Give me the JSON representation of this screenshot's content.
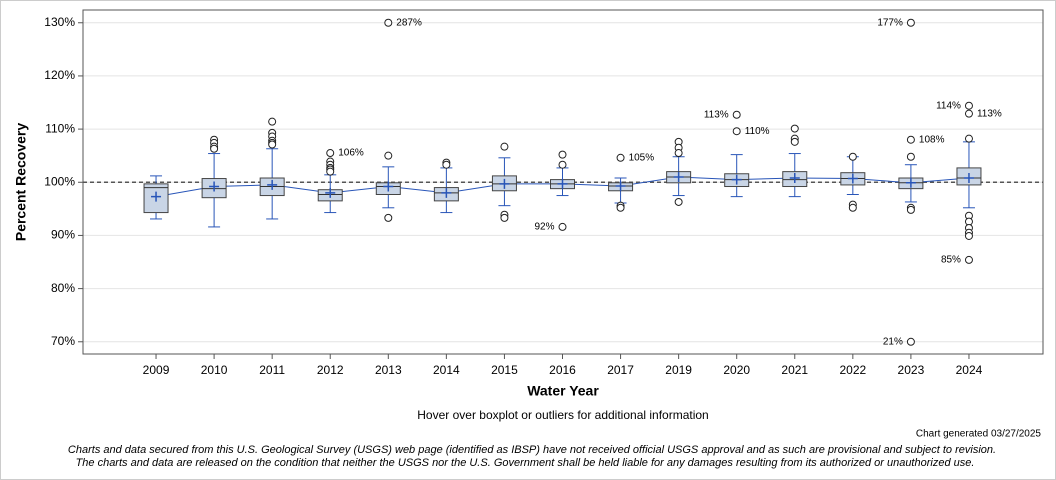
{
  "chart_data": {
    "type": "box",
    "y_axis_label": "Percent Recovery",
    "x_axis_label": "Water Year",
    "note": "Hover over boxplot or outliers for additional information",
    "generated": "Chart generated 03/27/2025",
    "disclaimer": [
      "Charts and data secured from this U.S. Geological Survey (USGS) web page (identified as IBSP) have not received official USGS approval and as such are provisional and subject to revision.",
      "The charts and data are released on the condition that neither the USGS nor the U.S. Government shall be held liable for any damages resulting from its authorized or unauthorized use."
    ],
    "categories": [
      "2009",
      "2010",
      "2011",
      "2012",
      "2013",
      "2014",
      "2015",
      "2016",
      "2017",
      "2019",
      "2020",
      "2021",
      "2022",
      "2023",
      "2024"
    ],
    "box_color": "#c9d5e6",
    "line_color": "#2855b8",
    "reference_line": 100,
    "ylim": [
      67.7,
      132.4
    ],
    "yticks": [
      {
        "value": 70,
        "label": "70%"
      },
      {
        "value": 80,
        "label": "80%"
      },
      {
        "value": 90,
        "label": "90%"
      },
      {
        "value": 100,
        "label": "100%"
      },
      {
        "value": 110,
        "label": "110%"
      },
      {
        "value": 120,
        "label": "120%"
      },
      {
        "value": 130,
        "label": "130%"
      }
    ],
    "grid": true,
    "boxes": [
      {
        "whisker_low": 93.1,
        "q1": 94.3,
        "median": 99.0,
        "q3": 99.7,
        "whisker_high": 101.2,
        "mean": 97.3,
        "outliers": []
      },
      {
        "whisker_low": 91.6,
        "q1": 97.1,
        "median": 98.8,
        "q3": 100.7,
        "whisker_high": 105.4,
        "mean": 99.2,
        "outliers": [
          108.0,
          107.4,
          106.7,
          106.3
        ]
      },
      {
        "whisker_low": 93.1,
        "q1": 97.5,
        "median": 99.2,
        "q3": 100.8,
        "whisker_high": 106.3,
        "mean": 99.5,
        "outliers": [
          111.4,
          109.3,
          108.6,
          107.8,
          107.4,
          107.1
        ]
      },
      {
        "whisker_low": 94.3,
        "q1": 96.5,
        "median": 97.7,
        "q3": 98.6,
        "whisker_high": 101.4,
        "mean": 98.0,
        "outliers": [
          {
            "value": 105.5,
            "label": "106%"
          },
          103.9,
          103.3,
          102.7,
          102.4,
          102.0
        ]
      },
      {
        "whisker_low": 95.2,
        "q1": 97.7,
        "median": 99.2,
        "q3": 99.9,
        "whisker_high": 102.9,
        "mean": 99.2,
        "outliers": [
          {
            "value": 287,
            "label": "287%"
          },
          105.0,
          93.3
        ]
      },
      {
        "whisker_low": 94.3,
        "q1": 96.5,
        "median": 98.0,
        "q3": 99.0,
        "whisker_high": 102.7,
        "mean": 98.0,
        "outliers": [
          103.7,
          103.3
        ]
      },
      {
        "whisker_low": 95.6,
        "q1": 98.4,
        "median": 99.7,
        "q3": 101.2,
        "whisker_high": 104.6,
        "mean": 99.7,
        "outliers": [
          106.7,
          93.9,
          93.3
        ]
      },
      {
        "whisker_low": 97.5,
        "q1": 98.8,
        "median": 99.7,
        "q3": 100.5,
        "whisker_high": 102.7,
        "mean": 99.7,
        "outliers": [
          105.2,
          103.3,
          {
            "value": 91.6,
            "label": "92%"
          }
        ]
      },
      {
        "whisker_low": 96.1,
        "q1": 98.4,
        "median": 99.3,
        "q3": 99.9,
        "whisker_high": 100.8,
        "mean": 99.3,
        "outliers": [
          {
            "value": 104.6,
            "label": "105%"
          },
          95.6,
          95.2
        ]
      },
      {
        "whisker_low": 97.5,
        "q1": 99.9,
        "median": 101.0,
        "q3": 102.0,
        "whisker_high": 104.8,
        "mean": 101.0,
        "outliers": [
          107.6,
          106.5,
          105.5,
          96.3
        ]
      },
      {
        "whisker_low": 97.3,
        "q1": 99.2,
        "median": 100.5,
        "q3": 101.6,
        "whisker_high": 105.2,
        "mean": 100.5,
        "outliers": [
          {
            "value": 112.7,
            "label": "113%"
          },
          {
            "value": 109.6,
            "label": "110%"
          }
        ]
      },
      {
        "whisker_low": 97.3,
        "q1": 99.2,
        "median": 100.5,
        "q3": 102.0,
        "whisker_high": 105.4,
        "mean": 100.8,
        "outliers": [
          110.1,
          108.2,
          107.6
        ]
      },
      {
        "whisker_low": 97.7,
        "q1": 99.5,
        "median": 100.7,
        "q3": 101.8,
        "whisker_high": 104.8,
        "mean": 100.7,
        "outliers": [
          104.8,
          95.8,
          95.2
        ]
      },
      {
        "whisker_low": 96.3,
        "q1": 98.8,
        "median": 99.9,
        "q3": 100.8,
        "whisker_high": 103.3,
        "mean": 99.9,
        "outliers": [
          {
            "value": 177,
            "label": "177%"
          },
          {
            "value": 108.0,
            "label": "108%"
          },
          104.8,
          95.2,
          94.8,
          {
            "value": 21,
            "label": "21%"
          }
        ]
      },
      {
        "whisker_low": 95.2,
        "q1": 99.5,
        "median": 100.8,
        "q3": 102.7,
        "whisker_high": 107.6,
        "mean": 100.8,
        "outliers": [
          {
            "value": 114.4,
            "label": "114%"
          },
          {
            "value": 112.9,
            "label": "113%"
          },
          108.2,
          93.7,
          92.6,
          91.4,
          90.5,
          89.9,
          {
            "value": 85.4,
            "label": "85%"
          }
        ]
      }
    ]
  }
}
